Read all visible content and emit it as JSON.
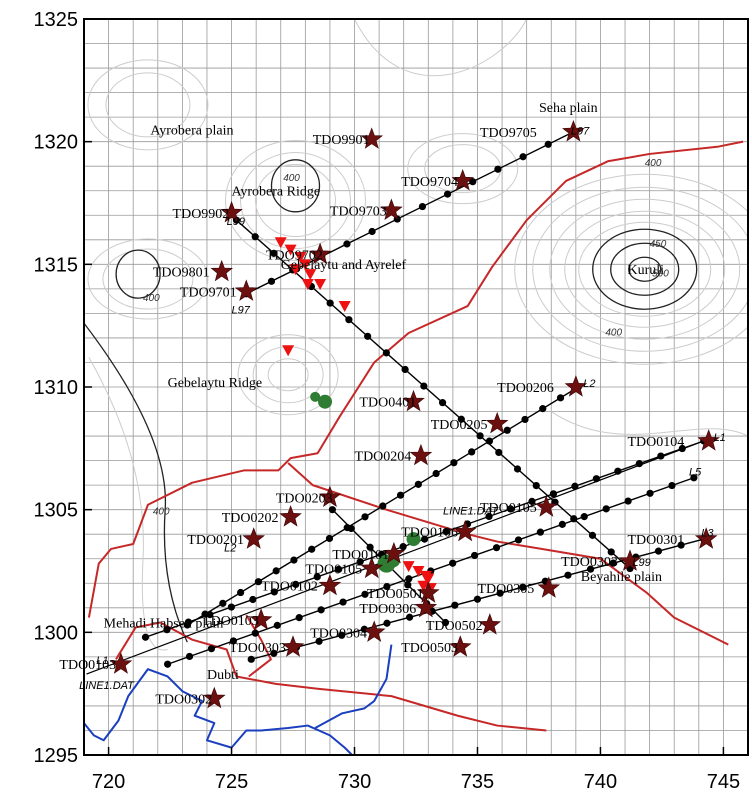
{
  "map": {
    "x_axis": {
      "min": 719,
      "max": 746,
      "ticks": [
        720,
        725,
        730,
        735,
        740,
        745
      ]
    },
    "y_axis": {
      "min": 1295,
      "max": 1325,
      "ticks": [
        1295,
        1300,
        1305,
        1310,
        1315,
        1320,
        1325
      ]
    },
    "place_labels": [
      {
        "text": "Ayrobera plain",
        "x": 721.7,
        "y": 1320.3
      },
      {
        "text": "Seha plain",
        "x": 737.5,
        "y": 1321.2
      },
      {
        "text": "Ayrobera Ridge",
        "x": 725.0,
        "y": 1317.8
      },
      {
        "text": "Gebelaytu and Ayrelef",
        "x": 727.0,
        "y": 1314.8
      },
      {
        "text": "Kuruli",
        "x": 741.1,
        "y": 1314.6
      },
      {
        "text": "Gebelaytu Ridge",
        "x": 722.4,
        "y": 1310.0
      },
      {
        "text": "Beyahile plain",
        "x": 739.2,
        "y": 1302.1
      },
      {
        "text": "Mehadi Habsen plain",
        "x": 719.8,
        "y": 1300.2
      },
      {
        "text": "Dubti",
        "x": 724.0,
        "y": 1298.1
      }
    ],
    "line_labels": [
      {
        "text": "L97",
        "x": 725.0,
        "y": 1313.0
      },
      {
        "text": "L2",
        "x": 724.7,
        "y": 1303.3
      },
      {
        "text": "LINE1.DAT",
        "x": 733.6,
        "y": 1304.8
      },
      {
        "text": "LINE1.DAT",
        "x": 718.8,
        "y": 1297.7
      },
      {
        "text": "L1",
        "x": 719.5,
        "y": 1298.7
      },
      {
        "text": "L5",
        "x": 743.6,
        "y": 1306.4
      },
      {
        "text": "L3",
        "x": 744.1,
        "y": 1303.9
      },
      {
        "text": "L99",
        "x": 741.3,
        "y": 1302.7
      },
      {
        "text": "L2",
        "x": 739.3,
        "y": 1310.0
      },
      {
        "text": "L1",
        "x": 744.6,
        "y": 1307.8
      },
      {
        "text": "L97",
        "x": 738.8,
        "y": 1320.3
      },
      {
        "text": "L99",
        "x": 724.8,
        "y": 1316.6
      }
    ],
    "contour_labels": [
      {
        "text": "400",
        "x": 727.1,
        "y": 1318.4
      },
      {
        "text": "400",
        "x": 741.8,
        "y": 1319.0
      },
      {
        "text": "450",
        "x": 742.0,
        "y": 1315.7
      },
      {
        "text": "500",
        "x": 742.1,
        "y": 1314.5
      },
      {
        "text": "400",
        "x": 740.2,
        "y": 1312.1
      },
      {
        "text": "400",
        "x": 721.4,
        "y": 1313.5
      },
      {
        "text": "400",
        "x": 721.8,
        "y": 1304.8
      }
    ],
    "stations": [
      {
        "id": "TDO9901",
        "x": 730.7,
        "y": 1320.1,
        "lx": 728.3
      },
      {
        "id": "TDO9705",
        "x": 738.9,
        "y": 1320.4,
        "lx": 735.1
      },
      {
        "id": "TDO9704",
        "x": 734.4,
        "y": 1318.4,
        "lx": 731.9
      },
      {
        "id": "TDO9703",
        "x": 731.5,
        "y": 1317.2,
        "lx": 729.0
      },
      {
        "id": "TDO9902",
        "x": 725.0,
        "y": 1317.1,
        "lx": 722.6
      },
      {
        "id": "TDO9702",
        "x": 728.6,
        "y": 1315.4,
        "lx": 726.4
      },
      {
        "id": "TDO9801",
        "x": 724.6,
        "y": 1314.7,
        "lx": 721.8
      },
      {
        "id": "TDO9701",
        "x": 725.6,
        "y": 1313.9,
        "lx": 722.9
      },
      {
        "id": "TDO0401",
        "x": 732.4,
        "y": 1309.4,
        "lx": 730.2
      },
      {
        "id": "TDO0206",
        "x": 739.0,
        "y": 1310.0,
        "lx": 735.8
      },
      {
        "id": "TDO0205",
        "x": 735.8,
        "y": 1308.5,
        "lx": 733.1
      },
      {
        "id": "TDO0204",
        "x": 732.7,
        "y": 1307.2,
        "lx": 730.0
      },
      {
        "id": "TDO0104",
        "x": 744.4,
        "y": 1307.8,
        "lx": 741.1
      },
      {
        "id": "TDO0203",
        "x": 729.0,
        "y": 1305.5,
        "lx": 726.8
      },
      {
        "id": "TDO0105",
        "x": 737.8,
        "y": 1305.1,
        "lx": 735.1
      },
      {
        "id": "TDO0202",
        "x": 727.4,
        "y": 1304.7,
        "lx": 724.6
      },
      {
        "id": "TDO0106",
        "x": 734.5,
        "y": 1304.1,
        "lx": 731.9
      },
      {
        "id": "TDO0201",
        "x": 725.9,
        "y": 1303.8,
        "lx": 723.2
      },
      {
        "id": "TDO0301",
        "x": 744.3,
        "y": 1303.8,
        "lx": 741.1
      },
      {
        "id": "TDO0101",
        "x": 731.6,
        "y": 1303.2,
        "lx": 729.1
      },
      {
        "id": "TDO0105",
        "x": 730.7,
        "y": 1302.6,
        "lx": 728.0
      },
      {
        "id": "TDO0303",
        "x": 741.2,
        "y": 1302.9,
        "lx": 738.4
      },
      {
        "id": "TDO0102",
        "x": 729.0,
        "y": 1301.9,
        "lx": 726.2
      },
      {
        "id": "TDO0501",
        "x": 733.0,
        "y": 1301.6,
        "lx": 730.5
      },
      {
        "id": "TDO0305",
        "x": 737.9,
        "y": 1301.8,
        "lx": 735.0
      },
      {
        "id": "TDO0306",
        "x": 732.9,
        "y": 1301.0,
        "lx": 730.2
      },
      {
        "id": "TDO0103",
        "x": 726.2,
        "y": 1300.5,
        "lx": 723.8
      },
      {
        "id": "TDO0502",
        "x": 735.5,
        "y": 1300.3,
        "lx": 732.9
      },
      {
        "id": "TDO0304",
        "x": 730.8,
        "y": 1300.0,
        "lx": 728.2
      },
      {
        "id": "TDO0303",
        "x": 727.5,
        "y": 1299.4,
        "lx": 724.9
      },
      {
        "id": "TDO0503",
        "x": 734.3,
        "y": 1299.4,
        "lx": 731.9
      },
      {
        "id": "TDO0103",
        "x": 720.5,
        "y": 1298.7,
        "lx": 718.0
      },
      {
        "id": "TDO0302",
        "x": 724.3,
        "y": 1297.3,
        "lx": 721.9
      }
    ],
    "triangles": [
      {
        "x": 727.0,
        "y": 1315.9
      },
      {
        "x": 727.4,
        "y": 1315.6
      },
      {
        "x": 727.8,
        "y": 1315.3
      },
      {
        "x": 728.0,
        "y": 1315.0
      },
      {
        "x": 727.6,
        "y": 1314.8
      },
      {
        "x": 728.2,
        "y": 1314.6
      },
      {
        "x": 728.6,
        "y": 1314.2
      },
      {
        "x": 728.1,
        "y": 1314.2
      },
      {
        "x": 729.6,
        "y": 1313.3
      },
      {
        "x": 727.3,
        "y": 1311.5
      },
      {
        "x": 732.2,
        "y": 1302.7
      },
      {
        "x": 732.6,
        "y": 1302.5
      },
      {
        "x": 733.0,
        "y": 1302.2
      },
      {
        "x": 732.8,
        "y": 1301.9
      },
      {
        "x": 733.1,
        "y": 1301.8
      },
      {
        "x": 732.9,
        "y": 1302.3
      }
    ],
    "green_dots": [
      {
        "x": 728.4,
        "y": 1309.6,
        "r": 5
      },
      {
        "x": 728.8,
        "y": 1309.4,
        "r": 7
      },
      {
        "x": 731.3,
        "y": 1302.8,
        "r": 9
      },
      {
        "x": 731.6,
        "y": 1302.9,
        "r": 6
      },
      {
        "x": 732.4,
        "y": 1303.8,
        "r": 7
      }
    ]
  }
}
